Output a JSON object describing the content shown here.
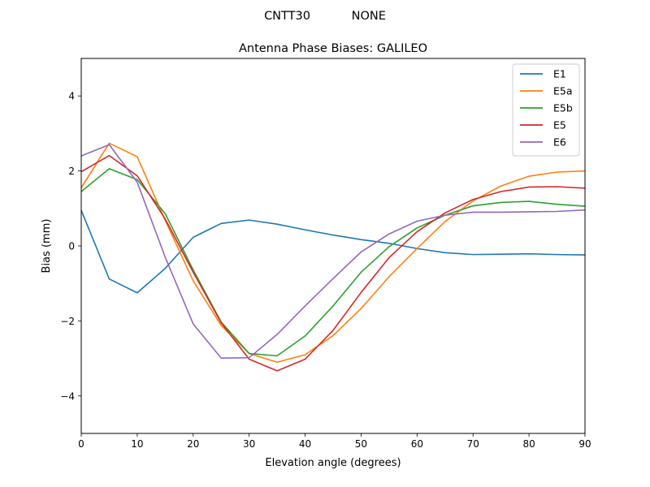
{
  "suptitle": "CNTT30           NONE",
  "chart_data": {
    "type": "line",
    "title": "Antenna Phase Biases: GALILEO",
    "xlabel": "Elevation angle (degrees)",
    "ylabel": "Bias (mm)",
    "xlim": [
      0,
      90
    ],
    "ylim": [
      -5,
      5
    ],
    "xticks": [
      0,
      10,
      20,
      30,
      40,
      50,
      60,
      70,
      80,
      90
    ],
    "yticks": [
      -4,
      -2,
      0,
      2,
      4
    ],
    "ytick_labels": [
      "−4",
      "−2",
      "0",
      "2",
      "4"
    ],
    "grid": false,
    "legend_position": "top-right",
    "x": [
      0,
      5,
      10,
      15,
      20,
      25,
      30,
      35,
      40,
      45,
      50,
      55,
      60,
      65,
      70,
      75,
      80,
      85,
      90
    ],
    "series": [
      {
        "name": "E1",
        "color": "#1f77b4",
        "values": [
          0.95,
          -0.88,
          -1.25,
          -0.6,
          0.23,
          0.6,
          0.69,
          0.58,
          0.43,
          0.29,
          0.17,
          0.07,
          -0.07,
          -0.18,
          -0.23,
          -0.22,
          -0.21,
          -0.23,
          -0.24
        ]
      },
      {
        "name": "E5a",
        "color": "#ff7f0e",
        "values": [
          1.55,
          2.74,
          2.38,
          0.68,
          -0.93,
          -2.12,
          -2.87,
          -3.1,
          -2.9,
          -2.39,
          -1.67,
          -0.82,
          -0.07,
          0.65,
          1.2,
          1.6,
          1.86,
          1.97,
          2.0
        ]
      },
      {
        "name": "E5b",
        "color": "#2ca02c",
        "values": [
          1.45,
          2.06,
          1.77,
          0.86,
          -0.64,
          -2.03,
          -2.87,
          -2.93,
          -2.4,
          -1.6,
          -0.7,
          -0.02,
          0.48,
          0.82,
          1.07,
          1.16,
          1.19,
          1.11,
          1.06
        ]
      },
      {
        "name": "E5",
        "color": "#d62728",
        "values": [
          1.98,
          2.41,
          1.87,
          0.72,
          -0.7,
          -2.05,
          -3.02,
          -3.33,
          -3.02,
          -2.25,
          -1.24,
          -0.31,
          0.38,
          0.88,
          1.24,
          1.45,
          1.57,
          1.58,
          1.54
        ]
      },
      {
        "name": "E6",
        "color": "#9467bd",
        "values": [
          2.4,
          2.7,
          1.7,
          -0.3,
          -2.08,
          -2.99,
          -2.98,
          -2.36,
          -1.6,
          -0.87,
          -0.16,
          0.32,
          0.66,
          0.82,
          0.9,
          0.9,
          0.91,
          0.92,
          0.96
        ]
      }
    ]
  }
}
